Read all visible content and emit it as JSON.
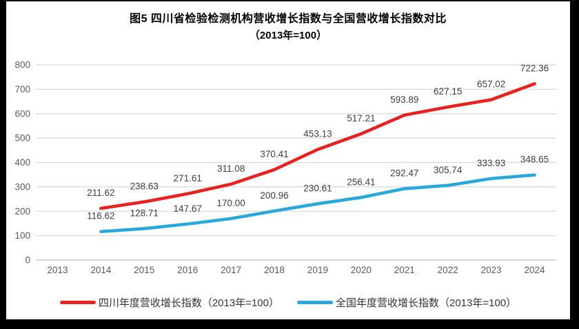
{
  "colors": {
    "page_background": "#000000",
    "card_background": "#ffffff",
    "gridline": "#d9d9d9",
    "zero_line": "#bfbfbf",
    "tick_label": "#595959",
    "data_label": "#3d3d3d",
    "title_text": "#000000"
  },
  "chart_data": {
    "type": "line",
    "title": "图5  四川省检验检测机构营收增长指数与全国营收增长指数对比",
    "subtitle": "（2013年=100）",
    "categories": [
      "2013",
      "2014",
      "2015",
      "2016",
      "2017",
      "2018",
      "2019",
      "2020",
      "2021",
      "2022",
      "2023",
      "2024"
    ],
    "xlabel": "",
    "ylabel": "",
    "ylim": [
      0,
      800
    ],
    "yticks": [
      0,
      100,
      200,
      300,
      400,
      500,
      600,
      700,
      800
    ],
    "grid": true,
    "legend_position": "bottom",
    "series": [
      {
        "key": "sichuan",
        "name": "四川年度营收增长指数（2013年=100）",
        "color": "#e62320",
        "start_category_index": 1,
        "values": [
          211.62,
          238.63,
          271.61,
          311.08,
          370.41,
          453.13,
          517.21,
          593.89,
          627.15,
          657.02,
          722.36
        ],
        "labels": [
          "211.62",
          "238.63",
          "271.61",
          "311.08",
          "370.41",
          "453.13",
          "517.21",
          "593.89",
          "627.15",
          "657.02",
          "722.36"
        ]
      },
      {
        "key": "national",
        "name": "全国年度营收增长指数（2013年=100）",
        "color": "#29a8dc",
        "start_category_index": 1,
        "values": [
          116.62,
          128.71,
          147.67,
          170.0,
          200.96,
          230.61,
          256.41,
          292.47,
          305.74,
          333.93,
          348.65
        ],
        "labels": [
          "116.62",
          "128.71",
          "147.67",
          "170.00",
          "200.96",
          "230.61",
          "256.41",
          "292.47",
          "305.74",
          "333.93",
          "348.65"
        ]
      }
    ]
  }
}
